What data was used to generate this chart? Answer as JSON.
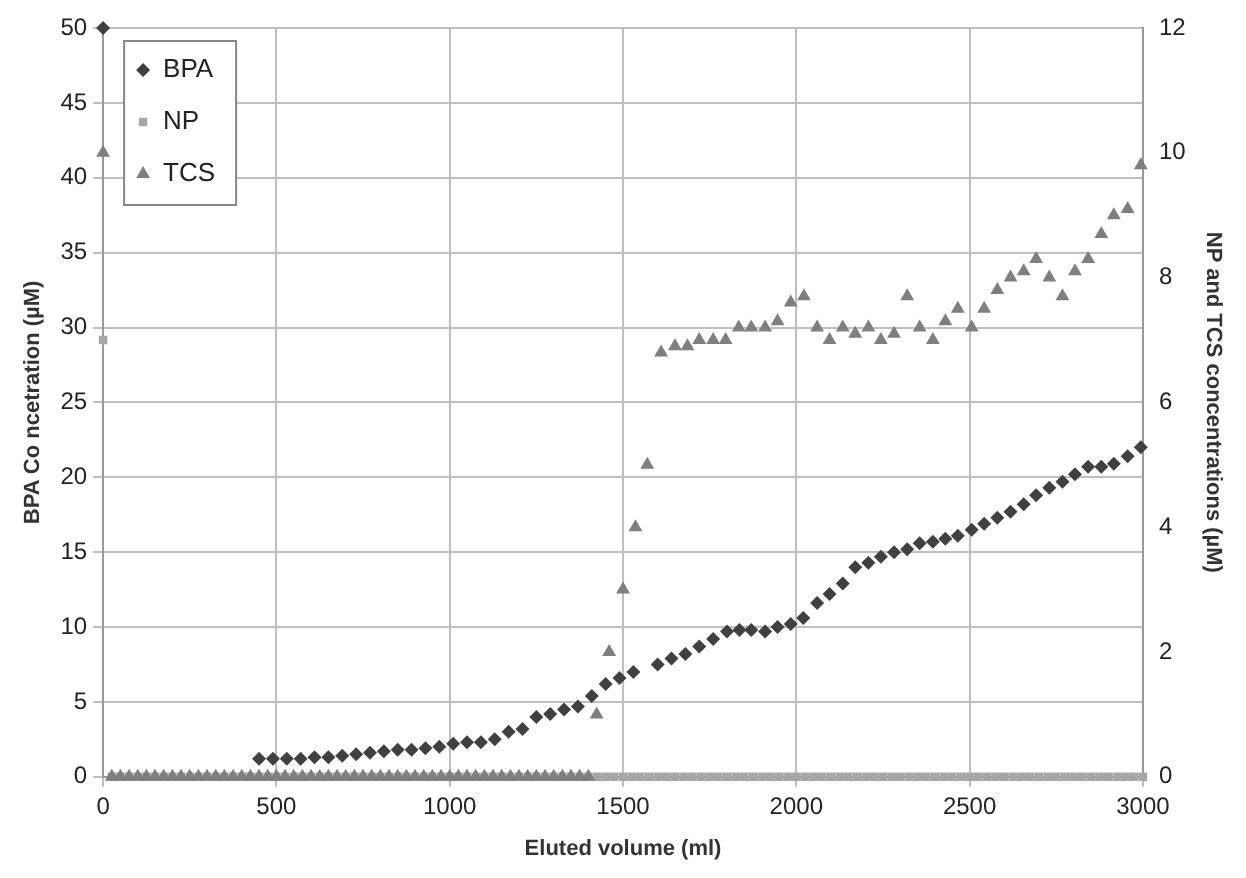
{
  "chart_data": {
    "type": "scatter",
    "xlabel": "Eluted volume (ml)",
    "ylabel": "BPA Co ncetration (µM)",
    "y2label": "NP and TCS concentrations (µM)",
    "xlim": [
      0,
      3000
    ],
    "xticks": [
      0,
      500,
      1000,
      1500,
      2000,
      2500,
      3000
    ],
    "ylim": [
      0,
      50
    ],
    "yticks": [
      0,
      5,
      10,
      15,
      20,
      25,
      30,
      35,
      40,
      45,
      50
    ],
    "y2lim": [
      0,
      12
    ],
    "y2ticks": [
      0,
      2,
      4,
      6,
      8,
      10,
      12
    ],
    "grid": true,
    "legend": "top left",
    "series": [
      {
        "name": "BPA",
        "color": "#404040",
        "marker": "diamond",
        "x": [
          0,
          450,
          490,
          530,
          570,
          610,
          650,
          690,
          730,
          770,
          810,
          850,
          890,
          930,
          970,
          1010,
          1050,
          1090,
          1130,
          1170,
          1210,
          1250,
          1290,
          1330,
          1370,
          1410,
          1450,
          1490,
          1530,
          1600,
          1640,
          1680,
          1720,
          1760,
          1800,
          1836,
          1870,
          1910,
          1946,
          1984,
          2020,
          2060,
          2096,
          2134,
          2170,
          2208,
          2244,
          2282,
          2320,
          2356,
          2394,
          2430,
          2466,
          2506,
          2542,
          2580,
          2618,
          2656,
          2692,
          2730,
          2768,
          2804,
          2842,
          2880,
          2916,
          2956,
          2994
        ],
        "values": [
          50,
          1.2,
          1.2,
          1.2,
          1.2,
          1.3,
          1.3,
          1.4,
          1.5,
          1.6,
          1.7,
          1.8,
          1.8,
          1.9,
          2.0,
          2.2,
          2.3,
          2.3,
          2.5,
          3.0,
          3.2,
          4.0,
          4.2,
          4.5,
          4.7,
          5.4,
          6.2,
          6.6,
          7.0,
          7.5,
          7.9,
          8.2,
          8.7,
          9.2,
          9.7,
          9.8,
          9.8,
          9.7,
          10.0,
          10.2,
          10.6,
          11.6,
          12.2,
          12.9,
          14.0,
          14.3,
          14.7,
          15.0,
          15.2,
          15.6,
          15.7,
          15.9,
          16.1,
          16.5,
          16.9,
          17.3,
          17.7,
          18.2,
          18.8,
          19.3,
          19.7,
          20.2,
          20.7,
          20.7,
          20.9,
          21.4,
          22.0
        ]
      },
      {
        "name": "NP",
        "color": "#a6a6a6",
        "marker": "square",
        "axis": "y2",
        "x": [
          0,
          25,
          50,
          75,
          100,
          125,
          150,
          175,
          200,
          225,
          250,
          275,
          300,
          325,
          350,
          375,
          400,
          425,
          450,
          475,
          500,
          525,
          550,
          575,
          600,
          625,
          650,
          675,
          700,
          725,
          750,
          775,
          800,
          825,
          850,
          875,
          900,
          925,
          950,
          975,
          1000,
          1025,
          1050,
          1075,
          1100,
          1125,
          1150,
          1175,
          1200,
          1225,
          1250,
          1275,
          1300,
          1325,
          1350,
          1375,
          1400,
          1425,
          1450,
          1475,
          1500,
          1525,
          1550,
          1575,
          1600,
          1625,
          1650,
          1675,
          1700,
          1725,
          1750,
          1775,
          1800,
          1825,
          1850,
          1875,
          1900,
          1925,
          1950,
          1975,
          2000,
          2025,
          2050,
          2075,
          2100,
          2125,
          2150,
          2175,
          2200,
          2225,
          2250,
          2275,
          2300,
          2325,
          2350,
          2375,
          2400,
          2425,
          2450,
          2475,
          2500,
          2525,
          2550,
          2575,
          2600,
          2625,
          2650,
          2675,
          2700,
          2725,
          2750,
          2775,
          2800,
          2825,
          2850,
          2875,
          2900,
          2925,
          2950,
          2975,
          3000
        ],
        "values": [
          7,
          0,
          0,
          0,
          0,
          0,
          0,
          0,
          0,
          0,
          0,
          0,
          0,
          0,
          0,
          0,
          0,
          0,
          0,
          0,
          0,
          0,
          0,
          0,
          0,
          0,
          0,
          0,
          0,
          0,
          0,
          0,
          0,
          0,
          0,
          0,
          0,
          0,
          0,
          0,
          0,
          0,
          0,
          0,
          0,
          0,
          0,
          0,
          0,
          0,
          0,
          0,
          0,
          0,
          0,
          0,
          0,
          0,
          0,
          0,
          0,
          0,
          0,
          0,
          0,
          0,
          0,
          0,
          0,
          0,
          0,
          0,
          0,
          0,
          0,
          0,
          0,
          0,
          0,
          0,
          0,
          0,
          0,
          0,
          0,
          0,
          0,
          0,
          0,
          0,
          0,
          0,
          0,
          0,
          0,
          0,
          0,
          0,
          0,
          0,
          0,
          0,
          0,
          0,
          0,
          0,
          0,
          0,
          0,
          0,
          0,
          0,
          0,
          0,
          0,
          0,
          0,
          0,
          0,
          0,
          0
        ]
      },
      {
        "name": "TCS",
        "color": "#7f7f7f",
        "marker": "triangle",
        "axis": "y2",
        "x": [
          0,
          25,
          50,
          75,
          100,
          125,
          150,
          175,
          200,
          225,
          250,
          275,
          300,
          325,
          350,
          375,
          400,
          425,
          450,
          475,
          500,
          525,
          550,
          575,
          600,
          625,
          650,
          675,
          700,
          725,
          750,
          775,
          800,
          825,
          850,
          875,
          900,
          925,
          950,
          975,
          1000,
          1025,
          1050,
          1075,
          1100,
          1125,
          1150,
          1175,
          1200,
          1225,
          1250,
          1275,
          1300,
          1325,
          1350,
          1375,
          1400,
          1424,
          1460,
          1500,
          1536,
          1570,
          1610,
          1650,
          1686,
          1720,
          1760,
          1796,
          1834,
          1870,
          1910,
          1946,
          1984,
          2022,
          2060,
          2096,
          2134,
          2170,
          2208,
          2244,
          2282,
          2320,
          2356,
          2394,
          2430,
          2466,
          2506,
          2542,
          2580,
          2618,
          2656,
          2692,
          2730,
          2768,
          2804,
          2842,
          2880,
          2916,
          2956,
          2994
        ],
        "values": [
          10,
          0,
          0,
          0,
          0,
          0,
          0,
          0,
          0,
          0,
          0,
          0,
          0,
          0,
          0,
          0,
          0,
          0,
          0,
          0,
          0,
          0,
          0,
          0,
          0,
          0,
          0,
          0,
          0,
          0,
          0,
          0,
          0,
          0,
          0,
          0,
          0,
          0,
          0,
          0,
          0,
          0,
          0,
          0,
          0,
          0,
          0,
          0,
          0,
          0,
          0,
          0,
          0,
          0,
          0,
          0,
          0,
          1.0,
          2.0,
          3.0,
          4.0,
          5.0,
          6.8,
          6.9,
          6.9,
          7.0,
          7.0,
          7.0,
          7.2,
          7.2,
          7.2,
          7.3,
          7.6,
          7.7,
          7.2,
          7.0,
          7.2,
          7.1,
          7.2,
          7.0,
          7.1,
          7.7,
          7.2,
          7.0,
          7.3,
          7.5,
          7.2,
          7.5,
          7.8,
          8.0,
          8.1,
          8.3,
          8.0,
          7.7,
          8.1,
          8.3,
          8.7,
          9.0,
          9.1,
          9.8
        ]
      }
    ]
  }
}
